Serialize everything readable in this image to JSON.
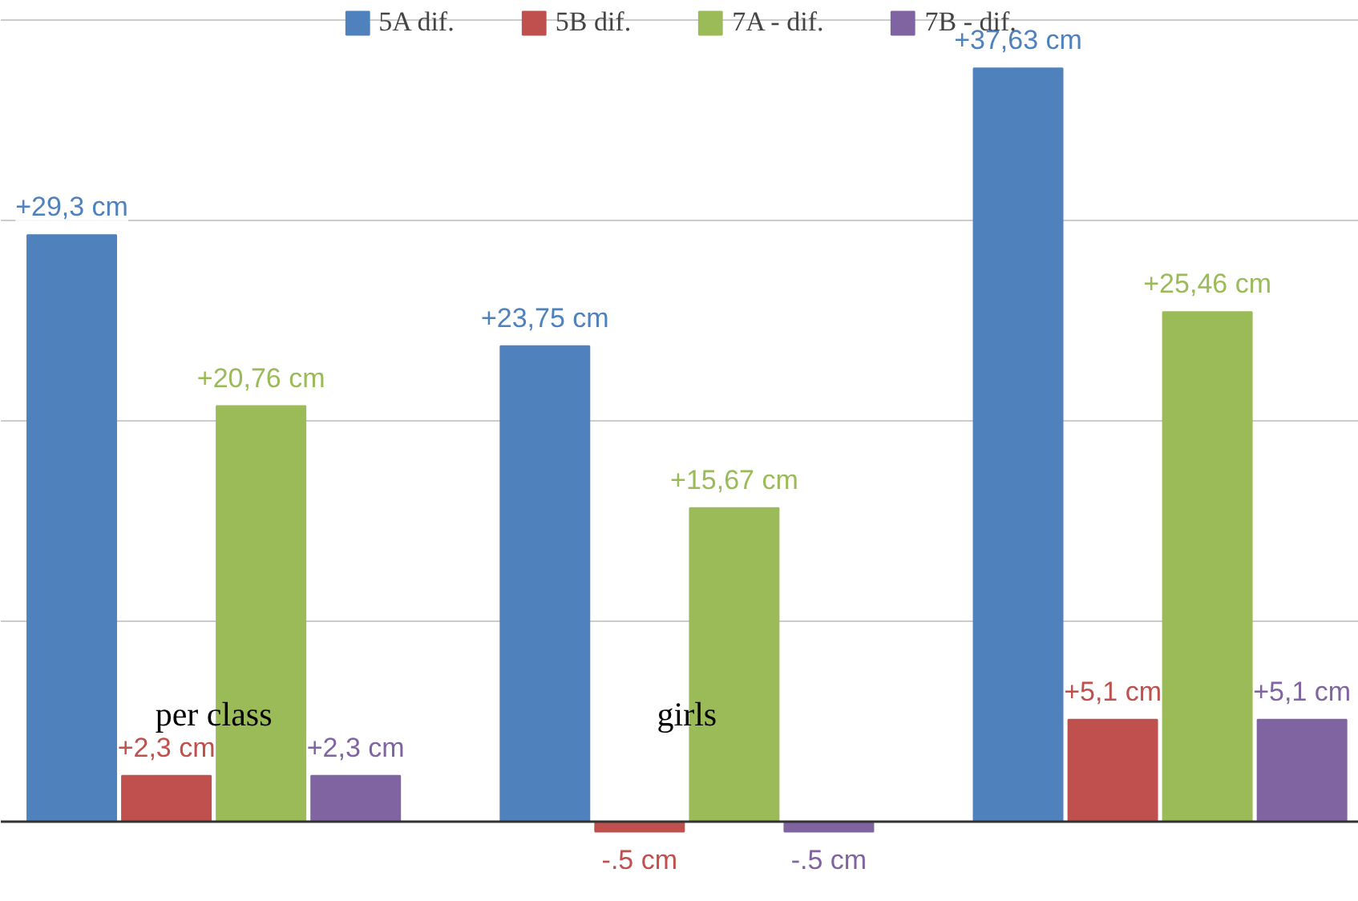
{
  "chart_data": {
    "type": "bar",
    "categories": [
      "per class",
      "girls",
      null
    ],
    "series": [
      {
        "name": "5A dif.",
        "color": "#4f81bd",
        "values": [
          29.3,
          23.75,
          37.63
        ],
        "value_labels": [
          "+29,3 cm",
          "+23,75 cm",
          "+37,63 cm"
        ]
      },
      {
        "name": "5B dif.",
        "color": "#c0504d",
        "values": [
          2.3,
          -0.5,
          5.1
        ],
        "value_labels": [
          "+2,3 cm",
          "-.5 cm",
          "+5,1 cm"
        ]
      },
      {
        "name": "7A - dif.",
        "color": "#9bbb59",
        "values": [
          20.76,
          15.67,
          25.46
        ],
        "value_labels": [
          "+20,76 cm",
          "+15,67 cm",
          "+25,46 cm"
        ]
      },
      {
        "name": "7B - dif.",
        "color": "#8064a2",
        "values": [
          2.3,
          -0.5,
          5.1
        ],
        "value_labels": [
          "+2,3 cm",
          "-.5 cm",
          "+5,1 cm"
        ]
      }
    ],
    "ylim": [
      -4,
      41
    ],
    "yticks": [
      {
        "value": 0,
        "label": null
      },
      {
        "value": 10,
        "label": null
      },
      {
        "value": 20,
        "label": null
      },
      {
        "value": 30,
        "label": null
      },
      {
        "value": 40,
        "label": null
      }
    ],
    "tick_labels": false,
    "grid": "y",
    "legend": "top"
  }
}
